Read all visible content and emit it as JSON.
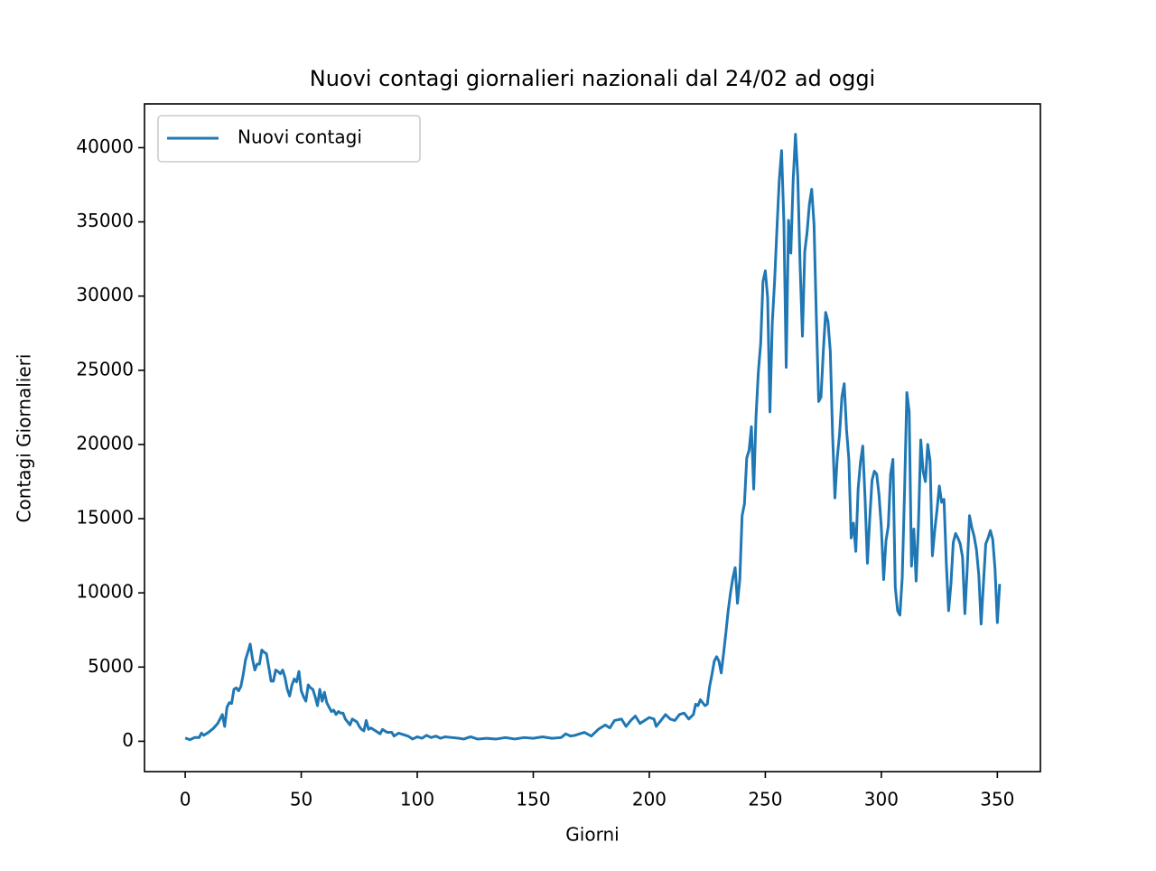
{
  "chart_data": {
    "type": "line",
    "title": "Nuovi contagi giornalieri nazionali dal 24/02 ad oggi",
    "xlabel": "Giorni",
    "ylabel": "Contagi Giornalieri",
    "x": [
      0,
      2,
      4,
      6,
      7,
      8,
      10,
      12,
      14,
      16,
      17,
      18,
      19,
      20,
      21,
      22,
      23,
      24,
      25,
      26,
      27,
      28,
      29,
      30,
      31,
      32,
      33,
      34,
      35,
      36,
      37,
      38,
      39,
      40,
      41,
      42,
      43,
      44,
      45,
      46,
      47,
      48,
      49,
      50,
      51,
      52,
      53,
      54,
      55,
      56,
      57,
      58,
      59,
      60,
      61,
      62,
      63,
      64,
      65,
      66,
      67,
      68,
      69,
      70,
      71,
      72,
      73,
      74,
      75,
      76,
      77,
      78,
      79,
      80,
      82,
      84,
      85,
      87,
      89,
      90,
      92,
      94,
      96,
      98,
      100,
      102,
      104,
      106,
      108,
      110,
      112,
      115,
      118,
      120,
      123,
      126,
      130,
      134,
      138,
      142,
      146,
      150,
      154,
      158,
      162,
      164,
      166,
      168,
      172,
      175,
      178,
      181,
      183,
      185,
      188,
      190,
      192,
      194,
      196,
      198,
      200,
      202,
      203,
      205,
      207,
      209,
      211,
      213,
      215,
      217,
      219,
      220,
      221,
      222,
      224,
      225,
      226,
      227,
      228,
      229,
      230,
      231,
      232,
      233,
      234,
      235,
      236,
      237,
      238,
      239,
      240,
      241,
      242,
      243,
      244,
      245,
      246,
      247,
      248,
      249,
      250,
      251,
      252,
      253,
      254,
      255,
      256,
      257,
      258,
      259,
      260,
      261,
      262,
      263,
      264,
      265,
      266,
      267,
      268,
      269,
      270,
      271,
      272,
      273,
      274,
      275,
      276,
      277,
      278,
      279,
      280,
      281,
      282,
      283,
      284,
      285,
      286,
      287,
      288,
      289,
      290,
      291,
      292,
      293,
      294,
      295,
      296,
      297,
      298,
      299,
      300,
      301,
      302,
      303,
      304,
      305,
      306,
      307,
      308,
      309,
      310,
      311,
      312,
      313,
      314,
      315,
      316,
      317,
      318,
      319,
      320,
      321,
      322,
      323,
      324,
      325,
      326,
      327,
      328,
      329,
      330,
      331,
      332,
      333,
      334,
      335,
      336,
      337,
      338,
      339,
      340,
      341,
      342,
      343,
      344,
      345,
      346,
      347,
      348,
      349,
      350,
      351
    ],
    "series": [
      {
        "name": "Nuovi contagi",
        "color": "#1f77b4",
        "values": [
          221,
          100,
          250,
          250,
          550,
          400,
          600,
          850,
          1200,
          1800,
          1000,
          2300,
          2600,
          2550,
          3500,
          3600,
          3400,
          3700,
          4500,
          5500,
          6000,
          6550,
          5550,
          4800,
          5200,
          5200,
          6150,
          6000,
          5900,
          5000,
          4050,
          4050,
          4800,
          4700,
          4550,
          4800,
          4300,
          3500,
          3050,
          3800,
          4200,
          4000,
          4700,
          3400,
          3000,
          2700,
          3800,
          3600,
          3500,
          3000,
          2400,
          3500,
          2700,
          3300,
          2600,
          2300,
          2000,
          2100,
          1800,
          2000,
          1900,
          1900,
          1500,
          1300,
          1100,
          1500,
          1400,
          1300,
          1000,
          800,
          700,
          1400,
          800,
          900,
          700,
          500,
          800,
          600,
          600,
          350,
          550,
          450,
          350,
          150,
          300,
          200,
          400,
          250,
          350,
          200,
          300,
          250,
          200,
          150,
          300,
          150,
          200,
          150,
          250,
          150,
          250,
          200,
          300,
          200,
          250,
          500,
          350,
          400,
          600,
          350,
          800,
          1100,
          900,
          1400,
          1500,
          1000,
          1400,
          1700,
          1200,
          1400,
          1600,
          1500,
          1000,
          1400,
          1800,
          1500,
          1400,
          1800,
          1900,
          1500,
          1800,
          2500,
          2400,
          2800,
          2400,
          2500,
          3700,
          4500,
          5400,
          5700,
          5400,
          4600,
          5900,
          7300,
          8800,
          10000,
          11000,
          11700,
          9300,
          10900,
          15200,
          16000,
          19100,
          19600,
          21200,
          17000,
          21900,
          24900,
          26800,
          31000,
          31700,
          29900,
          22200,
          28200,
          31000,
          34500,
          37800,
          39800,
          35000,
          25200,
          35100,
          32900,
          37800,
          40900,
          38000,
          32000,
          27300,
          33000,
          34300,
          36200,
          37200,
          34800,
          28500,
          22900,
          23200,
          26300,
          28900,
          28300,
          26300,
          20600,
          16400,
          19100,
          20700,
          23200,
          24100,
          21000,
          19000,
          13700,
          14700,
          12800,
          17000,
          18800,
          19900,
          16300,
          12000,
          15000,
          17600,
          18200,
          18000,
          16600,
          14400,
          10900,
          13500,
          14500,
          18000,
          19000,
          10400,
          8800,
          8500,
          11000,
          16800,
          23500,
          22200,
          11800,
          14300,
          10800,
          14600,
          20300,
          18200,
          17500,
          20000,
          18900,
          12500,
          14200,
          15600,
          17200,
          16100,
          16300,
          12000,
          8800,
          10600,
          13400,
          14000,
          13700,
          13300,
          12400,
          8600,
          11600,
          15200,
          14400,
          13800,
          12900,
          11200,
          7900,
          10600,
          13300,
          13700,
          14200,
          13600,
          11600,
          8000,
          10600
        ]
      }
    ],
    "xlim": [
      -17.55,
      368.55
    ],
    "ylim": [
      -2045,
      42950
    ],
    "xticks": [
      0,
      50,
      100,
      150,
      200,
      250,
      300,
      350
    ],
    "yticks": [
      0,
      5000,
      10000,
      15000,
      20000,
      25000,
      30000,
      35000,
      40000
    ],
    "legend": "upper left"
  }
}
